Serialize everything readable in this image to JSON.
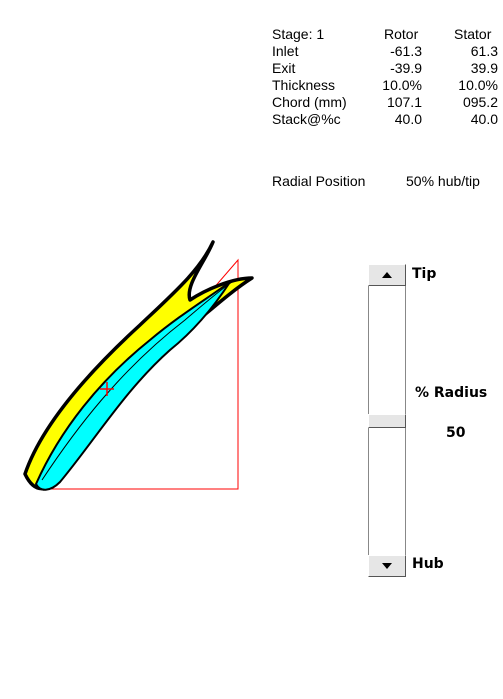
{
  "stage_table": {
    "header": {
      "label": "Stage:  1",
      "col1": "Rotor",
      "col2": "Stator"
    },
    "rows": [
      {
        "label": "Inlet",
        "rotor": "-61.3",
        "stator": "61.3"
      },
      {
        "label": "Exit",
        "rotor": "-39.9",
        "stator": "39.9"
      },
      {
        "label": "Thickness",
        "rotor": "10.0%",
        "stator": "10.0%"
      },
      {
        "label": "Chord (mm)",
        "rotor": "107.1",
        "stator": "095.2"
      },
      {
        "label": "Stack@%c",
        "rotor": "40.0",
        "stator": "40.0"
      }
    ]
  },
  "radial_position": {
    "label": "Radial Position",
    "value": "50% hub/tip"
  },
  "radius_control": {
    "tip_label": "Tip",
    "hub_label": "Hub",
    "title": "% Radius",
    "value": "50",
    "level": 0.5
  },
  "colors": {
    "rotor_fill": "#00ffff",
    "stator_fill": "#ffff00",
    "outline": "#000000",
    "triangle": "#ff0000",
    "stack_marker": "#ff0000"
  }
}
